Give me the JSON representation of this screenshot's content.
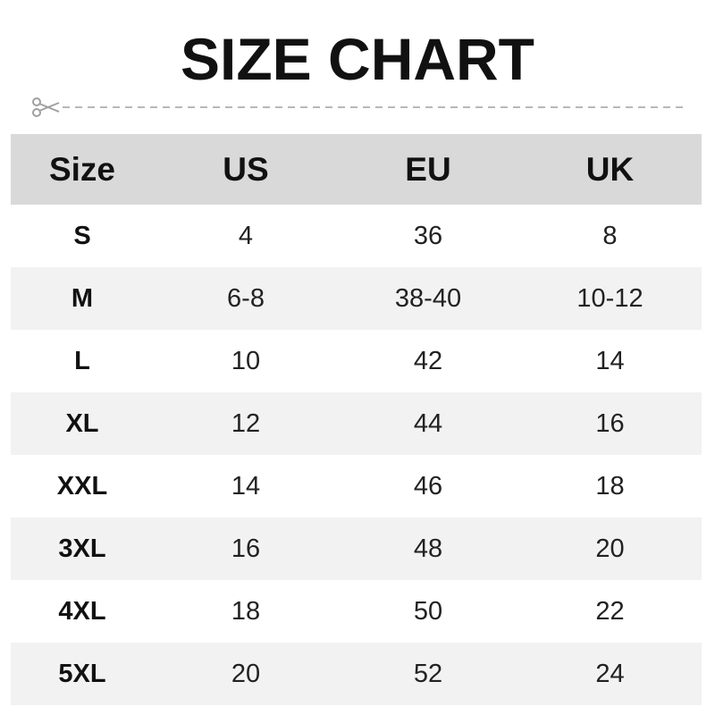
{
  "title": "SIZE CHART",
  "colors": {
    "header_bg": "#d9d9d9",
    "alt_row_bg": "#f2f2f2",
    "cut_line": "#a0a0a0"
  },
  "icons": {
    "cut": "scissors-icon"
  },
  "chart_data": {
    "type": "table",
    "title": "SIZE CHART",
    "columns": [
      "Size",
      "US",
      "EU",
      "UK"
    ],
    "rows": [
      [
        "S",
        "4",
        "36",
        "8"
      ],
      [
        "M",
        "6-8",
        "38-40",
        "10-12"
      ],
      [
        "L",
        "10",
        "42",
        "14"
      ],
      [
        "XL",
        "12",
        "44",
        "16"
      ],
      [
        "XXL",
        "14",
        "46",
        "18"
      ],
      [
        "3XL",
        "16",
        "48",
        "20"
      ],
      [
        "4XL",
        "18",
        "50",
        "22"
      ],
      [
        "5XL",
        "20",
        "52",
        "24"
      ]
    ]
  }
}
